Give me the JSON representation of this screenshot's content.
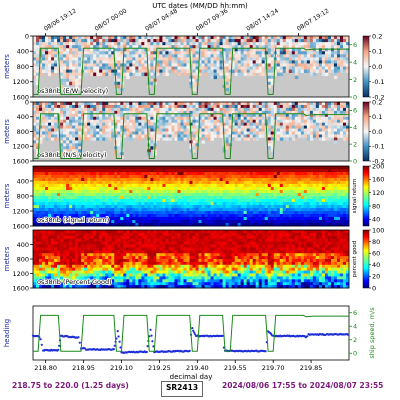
{
  "top_axis_label": "UTC dates (MM/DD hh:mm)",
  "top_ticks": [
    "08/06 19:12",
    "08/07 00:00",
    "08/07 04:48",
    "08/07 09:36",
    "08/07 14:24",
    "08/07 19:12"
  ],
  "top_ticks_decimal_day": [
    218.8,
    219.0,
    219.2,
    219.4,
    219.6,
    219.8
  ],
  "xlim": [
    218.75,
    220.0
  ],
  "xticks": [
    218.8,
    218.95,
    219.1,
    219.25,
    219.4,
    219.55,
    219.7,
    219.85
  ],
  "xtick_labels": [
    "218.80",
    "218.95",
    "219.10",
    "219.25",
    "219.40",
    "219.55",
    "219.70",
    "219.85"
  ],
  "xlabel": "decimal day",
  "footer": {
    "left": "218.75 to 220.0 (1.25 days)",
    "center": "SR2413",
    "right": "2024/08/06 17:55 to 2024/08/07 23:55"
  },
  "colors": {
    "speed_line": "#1a8a1a",
    "heading_line": "#1f2fd6",
    "footer_text": "#7b1a7b",
    "no_data": "#c8c8c8"
  },
  "chart_data": [
    {
      "type": "heatmap",
      "label": "os38nb (E/W velocity)",
      "ylabel": "meters",
      "ylim": [
        1600,
        0
      ],
      "yticks": [
        0,
        400,
        800,
        1200,
        1600
      ],
      "colormap": "red-white-blue",
      "colorbar": {
        "ticks": [
          0.2,
          0.1,
          0.0,
          -0.1,
          -0.2
        ],
        "range": [
          -0.2,
          0.2
        ]
      },
      "right_axis": {
        "ticks": [
          0,
          2,
          4,
          6
        ],
        "range": [
          0,
          7
        ]
      },
      "overlay": "ship speed"
    },
    {
      "type": "heatmap",
      "label": "os38nb (N/S velocity)",
      "ylabel": "meters",
      "ylim": [
        1600,
        0
      ],
      "yticks": [
        0,
        400,
        800,
        1200,
        1600
      ],
      "colormap": "red-white-blue",
      "colorbar": {
        "ticks": [
          0.2,
          0.1,
          0.0,
          -0.1,
          -0.2
        ],
        "range": [
          -0.2,
          0.2
        ]
      },
      "right_axis": {
        "ticks": [
          0,
          2,
          4,
          6
        ],
        "range": [
          0,
          7
        ]
      },
      "overlay": "ship speed"
    },
    {
      "type": "heatmap",
      "label": "os38nb (signal return)",
      "ylabel": "meters",
      "ylim": [
        1600,
        0
      ],
      "yticks": [
        400,
        800,
        1200,
        1600
      ],
      "colormap": "jet",
      "colorbar": {
        "label": "signal return",
        "ticks": [
          200,
          160,
          120,
          80,
          40
        ],
        "range": [
          20,
          200
        ]
      }
    },
    {
      "type": "heatmap",
      "label": "os38nb (Percent Good)",
      "ylabel": "meters",
      "ylim": [
        1600,
        0
      ],
      "yticks": [
        400,
        800,
        1200,
        1600
      ],
      "colormap": "jet",
      "colorbar": {
        "label": "percent good",
        "ticks": [
          100,
          80,
          60,
          40,
          20,
          0
        ],
        "range": [
          0,
          100
        ]
      }
    },
    {
      "type": "line",
      "ylabel": "heading",
      "y2label": "ship speed, m/s",
      "y2ticks": [
        0,
        2,
        4,
        6
      ],
      "y2lim": [
        -1,
        7
      ],
      "ylim": [
        -180,
        180
      ],
      "series": [
        {
          "name": "heading",
          "x": [
            218.75,
            218.77,
            218.78,
            218.79,
            218.85,
            218.86,
            218.93,
            218.94,
            218.955,
            218.96,
            219.07,
            219.08,
            219.085,
            219.1,
            219.2,
            219.21,
            219.215,
            219.23,
            219.37,
            219.375,
            219.38,
            219.395,
            219.5,
            219.505,
            219.51,
            219.53,
            219.67,
            219.675,
            219.68,
            219.7,
            219.82,
            219.83,
            219.84,
            219.86,
            220.0
          ],
          "y": [
            -20,
            -20,
            -40,
            -115,
            -115,
            -20,
            -30,
            -105,
            -100,
            -110,
            -110,
            -35,
            10,
            -130,
            -125,
            -20,
            20,
            -125,
            -120,
            -10,
            30,
            -20,
            -20,
            -100,
            -120,
            -120,
            -120,
            -60,
            10,
            -20,
            -20,
            -30,
            -10,
            -10,
            -10
          ]
        },
        {
          "name": "ship speed",
          "x": [
            218.75,
            218.77,
            218.78,
            218.85,
            218.86,
            218.94,
            218.95,
            219.07,
            219.08,
            219.1,
            219.11,
            219.2,
            219.21,
            219.23,
            219.24,
            219.37,
            219.38,
            219.4,
            219.41,
            219.5,
            219.51,
            219.53,
            219.54,
            219.67,
            219.68,
            219.7,
            219.71,
            219.82,
            219.83,
            219.86,
            220.0
          ],
          "y": [
            0.3,
            0.3,
            5.6,
            5.6,
            0.3,
            0.3,
            5.6,
            5.6,
            0.3,
            0.3,
            5.6,
            5.6,
            0.3,
            0.3,
            5.6,
            5.6,
            0.3,
            0.3,
            5.6,
            5.6,
            0.3,
            0.3,
            5.6,
            5.6,
            0.3,
            0.3,
            5.6,
            5.6,
            5.4,
            5.5,
            5.5
          ]
        }
      ]
    }
  ]
}
